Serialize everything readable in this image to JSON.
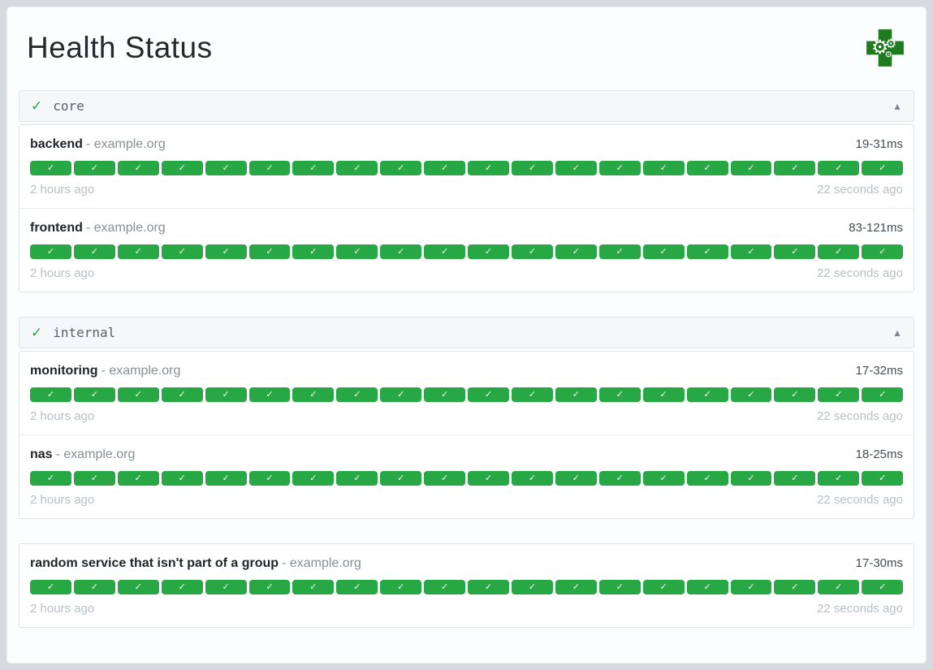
{
  "header": {
    "title": "Health Status",
    "logo_icon": "health-cross-gears-icon"
  },
  "icons": {
    "group_status_check": "✓",
    "badge_check": "✓",
    "collapse_arrow_up": "▲",
    "gear": "⚙"
  },
  "colors": {
    "success_green": "#28a745",
    "logo_green": "#1e7b1e",
    "page_background": "#d8dbde",
    "card_background": "#fcfdfe"
  },
  "groups": [
    {
      "name": "core",
      "healthy": true,
      "collapsed": false,
      "services": [
        {
          "name": "backend",
          "host_label": "- example.org",
          "response_time_range": "19-31ms",
          "oldest_result": "2 hours ago",
          "newest_result": "22 seconds ago",
          "check_count": 20,
          "all_success": true
        },
        {
          "name": "frontend",
          "host_label": "- example.org",
          "response_time_range": "83-121ms",
          "oldest_result": "2 hours ago",
          "newest_result": "22 seconds ago",
          "check_count": 20,
          "all_success": true
        }
      ]
    },
    {
      "name": "internal",
      "healthy": true,
      "collapsed": false,
      "services": [
        {
          "name": "monitoring",
          "host_label": "- example.org",
          "response_time_range": "17-32ms",
          "oldest_result": "2 hours ago",
          "newest_result": "22 seconds ago",
          "check_count": 20,
          "all_success": true
        },
        {
          "name": "nas",
          "host_label": "- example.org",
          "response_time_range": "18-25ms",
          "oldest_result": "2 hours ago",
          "newest_result": "22 seconds ago",
          "check_count": 20,
          "all_success": true
        }
      ]
    },
    {
      "name": null,
      "healthy": true,
      "collapsed": false,
      "services": [
        {
          "name": "random service that isn't part of a group",
          "host_label": "- example.org",
          "response_time_range": "17-30ms",
          "oldest_result": "2 hours ago",
          "newest_result": "22 seconds ago",
          "check_count": 20,
          "all_success": true
        }
      ]
    }
  ]
}
